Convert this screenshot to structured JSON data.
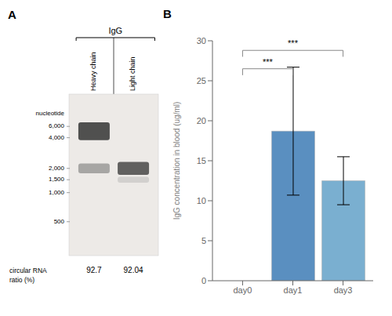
{
  "chart_data": [
    {
      "type": "gel",
      "title": "A",
      "subtitle": "IgG",
      "categories": [
        "Heavy chain",
        "Light chain"
      ],
      "annotations": [
        "nucleotide",
        "6,000",
        "4,000",
        "2,000",
        "1,500",
        "1,000",
        "500"
      ],
      "ylabel": "circular RNA\nratio (%)",
      "values": [
        92.7,
        92.04
      ],
      "value_labels": [
        "92.7",
        "92.04"
      ],
      "color": "#edeae7",
      "colors": [
        "#3a3a3a",
        "#787878",
        "#3d3d3d",
        "#aaaaaa"
      ]
    },
    {
      "type": "bar",
      "title": "B",
      "categories": [
        "day0",
        "day1",
        "day3"
      ],
      "values": [
        0.0,
        18.7,
        12.5
      ],
      "errors": [
        0.0,
        8.0,
        3.0
      ],
      "colors": [
        "#b8d0e8",
        "#5a8fc0",
        "#7aafd0"
      ],
      "ylabel": "IgG concentration in blood (ug/ml)",
      "ylim": [
        0,
        30
      ],
      "yticks": [
        0,
        5,
        10,
        15,
        20,
        25,
        30
      ],
      "annotations": [
        {
          "x1": "day0",
          "x2": "day1",
          "y": 26.5,
          "label": "***"
        },
        {
          "x1": "day0",
          "x2": "day3",
          "y": 28.8,
          "label": "***"
        }
      ]
    }
  ]
}
